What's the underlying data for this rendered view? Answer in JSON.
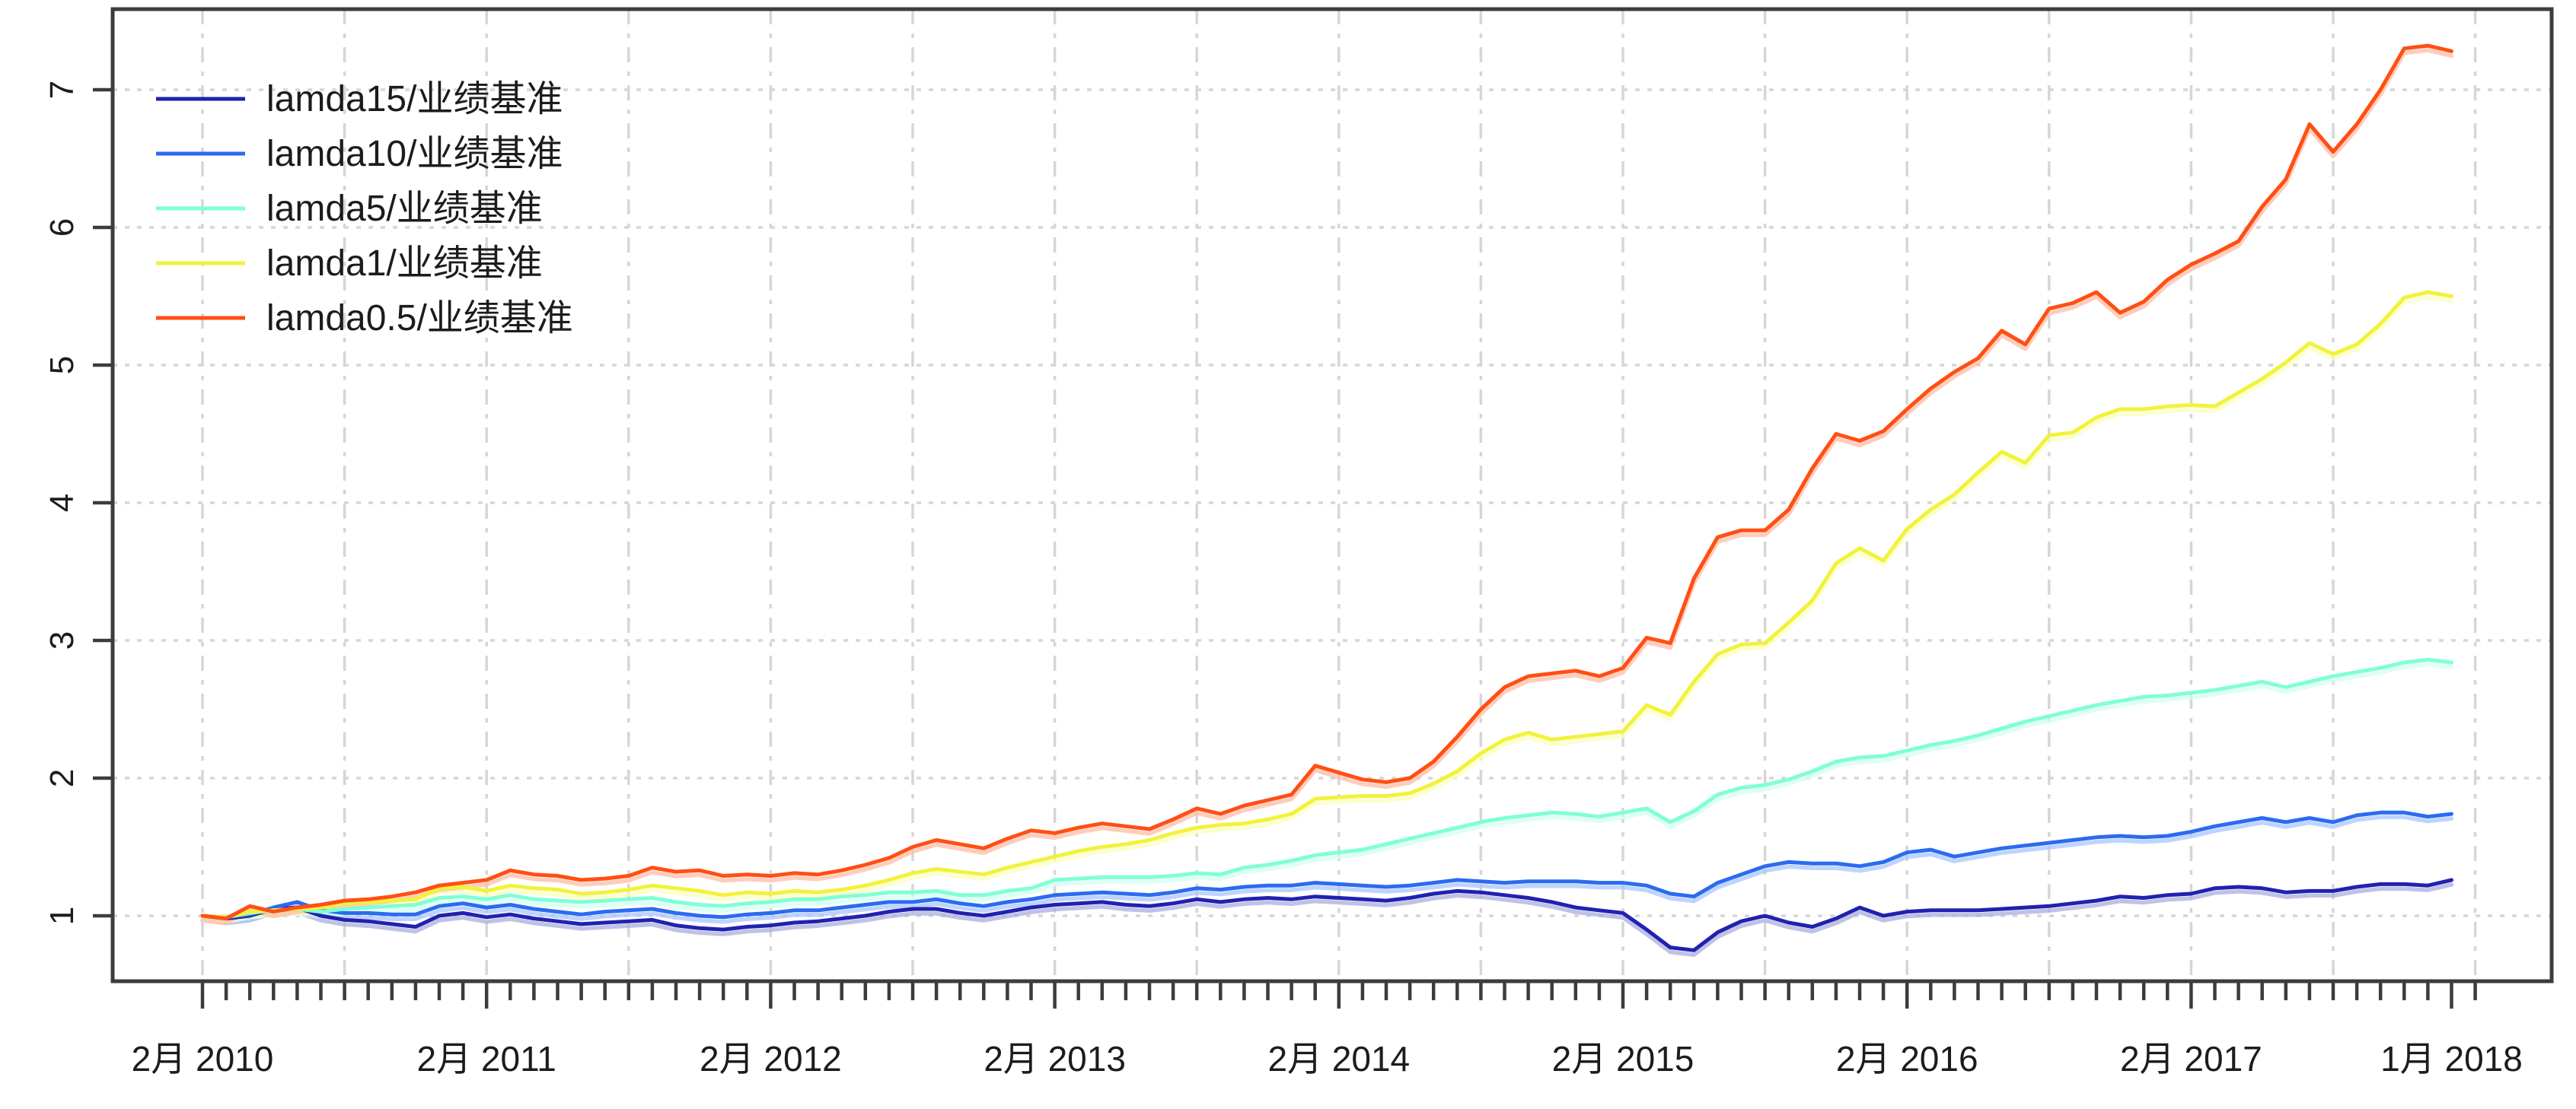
{
  "chart_data": {
    "type": "line",
    "title": "",
    "xlabel": "",
    "ylabel": "",
    "x_start": "2010-02",
    "x_end": "2018-01",
    "months_total": 96,
    "x_axis": {
      "labeled_tick_months": [
        0,
        12,
        24,
        36,
        48,
        60,
        72,
        84,
        95
      ],
      "tick_labels": [
        "2月 2010",
        "2月 2011",
        "2月 2012",
        "2月 2013",
        "2月 2014",
        "2月 2015",
        "2月 2016",
        "2月 2017",
        "1月 2018"
      ],
      "minor_tick_every_months": 1,
      "last_minor_tick_month": 96
    },
    "y_axis": {
      "ticks": [
        1,
        2,
        3,
        4,
        5,
        6,
        7
      ],
      "tick_labels": [
        "1",
        "2",
        "3",
        "4",
        "5",
        "6",
        "7"
      ],
      "range": [
        0.52,
        7.6
      ],
      "label_rotation_deg": -90
    },
    "grid": {
      "horizontal_style": "dotted",
      "horizontal_at": [
        1,
        2,
        3,
        4,
        5,
        6,
        7
      ],
      "vertical_style": "dash-dot",
      "vertical_every_months": 6,
      "color": "#d6d6d6"
    },
    "legend": {
      "position": "top-left",
      "box": "none"
    },
    "axis_color": "#3c3c3c",
    "background": "#ffffff",
    "series": [
      {
        "name": "lamda15/业绩基准",
        "color": "#2121b0",
        "halo_color": "#a9aede",
        "values": [
          1.0,
          0.98,
          1.0,
          1.05,
          1.06,
          1.0,
          0.97,
          0.96,
          0.94,
          0.92,
          1.0,
          1.02,
          0.99,
          1.01,
          0.98,
          0.96,
          0.94,
          0.95,
          0.96,
          0.97,
          0.93,
          0.91,
          0.9,
          0.92,
          0.93,
          0.95,
          0.96,
          0.98,
          1.0,
          1.03,
          1.05,
          1.05,
          1.02,
          1.0,
          1.03,
          1.06,
          1.08,
          1.09,
          1.1,
          1.08,
          1.07,
          1.09,
          1.12,
          1.1,
          1.12,
          1.13,
          1.12,
          1.14,
          1.13,
          1.12,
          1.11,
          1.13,
          1.16,
          1.18,
          1.17,
          1.15,
          1.13,
          1.1,
          1.06,
          1.04,
          1.02,
          0.9,
          0.77,
          0.75,
          0.88,
          0.96,
          1.0,
          0.95,
          0.92,
          0.98,
          1.06,
          1.0,
          1.03,
          1.04,
          1.04,
          1.04,
          1.05,
          1.06,
          1.07,
          1.09,
          1.11,
          1.14,
          1.13,
          1.15,
          1.16,
          1.2,
          1.21,
          1.2,
          1.17,
          1.18,
          1.18,
          1.21,
          1.23,
          1.23,
          1.22,
          1.26
        ]
      },
      {
        "name": "lamda10/业绩基准",
        "color": "#2b6bf0",
        "halo_color": "#a8c6ff",
        "values": [
          1.0,
          0.99,
          1.01,
          1.06,
          1.1,
          1.04,
          1.02,
          1.02,
          1.01,
          1.01,
          1.07,
          1.09,
          1.06,
          1.08,
          1.05,
          1.03,
          1.01,
          1.03,
          1.04,
          1.05,
          1.02,
          1.0,
          0.99,
          1.01,
          1.02,
          1.04,
          1.04,
          1.06,
          1.08,
          1.1,
          1.1,
          1.12,
          1.09,
          1.07,
          1.1,
          1.12,
          1.15,
          1.16,
          1.17,
          1.16,
          1.15,
          1.17,
          1.2,
          1.19,
          1.21,
          1.22,
          1.22,
          1.24,
          1.23,
          1.22,
          1.21,
          1.22,
          1.24,
          1.26,
          1.25,
          1.24,
          1.25,
          1.25,
          1.25,
          1.24,
          1.24,
          1.22,
          1.16,
          1.14,
          1.24,
          1.3,
          1.36,
          1.39,
          1.38,
          1.38,
          1.36,
          1.39,
          1.46,
          1.48,
          1.43,
          1.46,
          1.49,
          1.51,
          1.53,
          1.55,
          1.57,
          1.58,
          1.57,
          1.58,
          1.61,
          1.65,
          1.68,
          1.71,
          1.68,
          1.71,
          1.68,
          1.73,
          1.75,
          1.75,
          1.72,
          1.74
        ]
      },
      {
        "name": "lamda5/业绩基准",
        "color": "#7fffd4",
        "halo_color": "#d2fff1",
        "values": [
          1.0,
          0.99,
          1.02,
          1.04,
          1.05,
          1.03,
          1.05,
          1.06,
          1.07,
          1.08,
          1.13,
          1.14,
          1.12,
          1.15,
          1.12,
          1.11,
          1.1,
          1.11,
          1.12,
          1.13,
          1.1,
          1.08,
          1.07,
          1.09,
          1.1,
          1.12,
          1.12,
          1.14,
          1.15,
          1.17,
          1.17,
          1.18,
          1.15,
          1.15,
          1.18,
          1.2,
          1.26,
          1.27,
          1.28,
          1.28,
          1.28,
          1.29,
          1.31,
          1.3,
          1.35,
          1.37,
          1.4,
          1.44,
          1.46,
          1.48,
          1.52,
          1.56,
          1.6,
          1.64,
          1.68,
          1.71,
          1.73,
          1.75,
          1.74,
          1.72,
          1.75,
          1.78,
          1.68,
          1.76,
          1.88,
          1.93,
          1.95,
          1.99,
          2.05,
          2.12,
          2.15,
          2.16,
          2.2,
          2.24,
          2.27,
          2.31,
          2.36,
          2.41,
          2.45,
          2.49,
          2.53,
          2.56,
          2.59,
          2.6,
          2.62,
          2.64,
          2.67,
          2.7,
          2.66,
          2.7,
          2.74,
          2.77,
          2.8,
          2.84,
          2.86,
          2.84
        ]
      },
      {
        "name": "lamda1/业绩基准",
        "color": "#f2f23c",
        "halo_color": "#fbffbe",
        "values": [
          1.0,
          0.99,
          1.03,
          1.04,
          1.05,
          1.06,
          1.09,
          1.1,
          1.11,
          1.12,
          1.2,
          1.21,
          1.18,
          1.22,
          1.2,
          1.19,
          1.16,
          1.17,
          1.19,
          1.22,
          1.2,
          1.18,
          1.15,
          1.17,
          1.16,
          1.18,
          1.17,
          1.19,
          1.22,
          1.26,
          1.31,
          1.34,
          1.32,
          1.3,
          1.35,
          1.39,
          1.43,
          1.47,
          1.5,
          1.52,
          1.55,
          1.6,
          1.64,
          1.66,
          1.67,
          1.7,
          1.74,
          1.85,
          1.86,
          1.87,
          1.87,
          1.89,
          1.96,
          2.05,
          2.18,
          2.28,
          2.33,
          2.28,
          2.3,
          2.32,
          2.34,
          2.53,
          2.46,
          2.7,
          2.9,
          2.97,
          2.98,
          3.13,
          3.29,
          3.56,
          3.67,
          3.58,
          3.81,
          3.95,
          4.06,
          4.22,
          4.37,
          4.29,
          4.49,
          4.51,
          4.62,
          4.68,
          4.68,
          4.7,
          4.71,
          4.7,
          4.8,
          4.9,
          5.02,
          5.16,
          5.08,
          5.15,
          5.3,
          5.49,
          5.53,
          5.5
        ]
      },
      {
        "name": "lamda0.5/业绩基准",
        "color": "#ff4f14",
        "halo_color": "#ffbca4",
        "values": [
          1.0,
          0.98,
          1.07,
          1.03,
          1.06,
          1.08,
          1.11,
          1.12,
          1.14,
          1.17,
          1.22,
          1.24,
          1.26,
          1.33,
          1.3,
          1.29,
          1.26,
          1.27,
          1.29,
          1.35,
          1.32,
          1.33,
          1.29,
          1.3,
          1.29,
          1.31,
          1.3,
          1.33,
          1.37,
          1.42,
          1.5,
          1.55,
          1.52,
          1.49,
          1.56,
          1.62,
          1.6,
          1.64,
          1.67,
          1.65,
          1.63,
          1.7,
          1.78,
          1.74,
          1.8,
          1.84,
          1.88,
          2.09,
          2.04,
          1.99,
          1.97,
          2.0,
          2.12,
          2.3,
          2.5,
          2.66,
          2.74,
          2.76,
          2.78,
          2.74,
          2.8,
          3.02,
          2.98,
          3.45,
          3.75,
          3.8,
          3.8,
          3.95,
          4.25,
          4.5,
          4.45,
          4.52,
          4.68,
          4.83,
          4.95,
          5.05,
          5.25,
          5.15,
          5.41,
          5.45,
          5.53,
          5.38,
          5.46,
          5.62,
          5.73,
          5.81,
          5.9,
          6.15,
          6.35,
          6.75,
          6.55,
          6.75,
          7.0,
          7.3,
          7.32,
          7.28
        ]
      }
    ]
  }
}
